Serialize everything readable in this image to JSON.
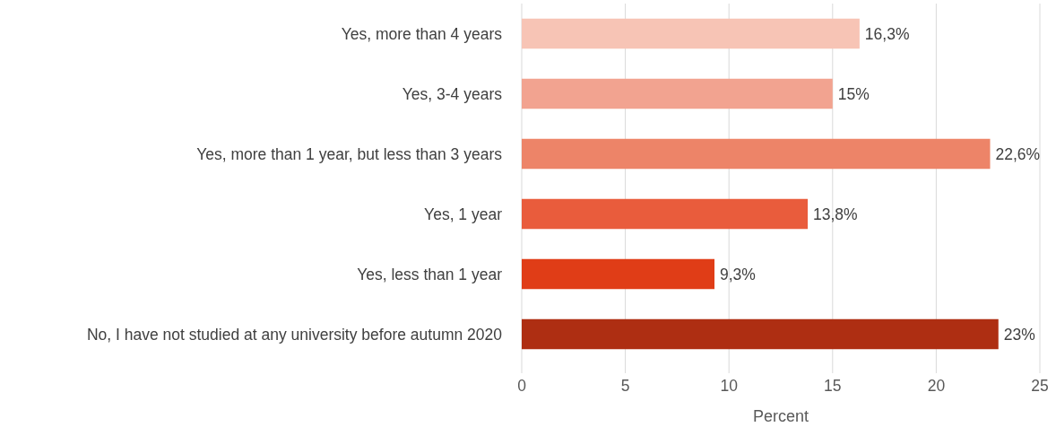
{
  "chart_data": {
    "type": "bar",
    "orientation": "horizontal",
    "xlabel": "Percent",
    "categories": [
      "Yes, more than 4 years",
      "Yes, 3-4 years",
      "Yes, more than 1 year, but less than 3 years",
      "Yes, 1 year",
      "Yes, less than 1 year",
      "No, I have not studied at any university before autumn 2020"
    ],
    "values": [
      16.3,
      15,
      22.6,
      13.8,
      9.3,
      23
    ],
    "colors": [
      "#f7c4b5",
      "#f2a390",
      "#ed8468",
      "#e95c3c",
      "#e03d17",
      "#ae2e12"
    ],
    "value_labels": [
      "16,3%",
      "15%",
      "22,6%",
      "13,8%",
      "9,3%",
      "23%"
    ],
    "xlim": [
      0,
      25
    ],
    "xticks": [
      0,
      5,
      10,
      15,
      20,
      25
    ],
    "grid": "x"
  }
}
